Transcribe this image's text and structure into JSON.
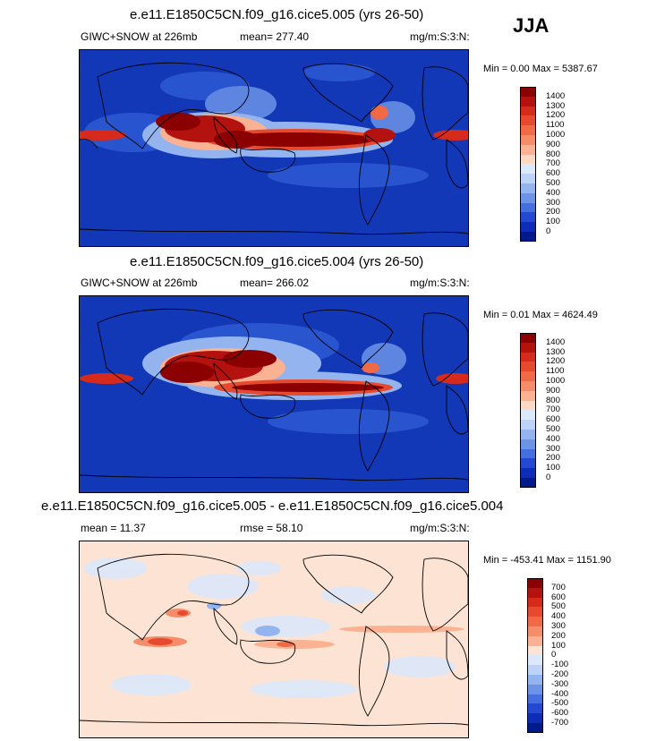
{
  "season": "JJA",
  "units": "mg/m:S:3:N:",
  "panels": [
    {
      "title": "e.e11.E1850C5CN.f09_g16.cice5.005 (yrs 26-50)",
      "variable": "GIWC+SNOW at 226mb",
      "mean": "mean= 277.40",
      "minmax": "Min =   0.00 Max = 5387.67",
      "levels": [
        "1400",
        "1300",
        "1200",
        "1100",
        "1000",
        "900",
        "800",
        "700",
        "600",
        "500",
        "400",
        "300",
        "200",
        "100",
        "0"
      ],
      "colors": [
        "#8b0000",
        "#b3120e",
        "#d62a1c",
        "#e64a2e",
        "#f06a48",
        "#f58d6b",
        "#fab293",
        "#fdd8c3",
        "#dce8fb",
        "#bcd2f7",
        "#94b4ef",
        "#6c93e6",
        "#456fde",
        "#2448d2",
        "#0f2cb8",
        "#001a8c"
      ]
    },
    {
      "title": "e.e11.E1850C5CN.f09_g16.cice5.004 (yrs 26-50)",
      "variable": "GIWC+SNOW at 226mb",
      "mean": "mean= 266.02",
      "minmax": "Min =   0.01 Max = 4624.49",
      "levels": [
        "1400",
        "1300",
        "1200",
        "1100",
        "1000",
        "900",
        "800",
        "700",
        "600",
        "500",
        "400",
        "300",
        "200",
        "100",
        "0"
      ],
      "colors": [
        "#8b0000",
        "#b3120e",
        "#d62a1c",
        "#e64a2e",
        "#f06a48",
        "#f58d6b",
        "#fab293",
        "#fdd8c3",
        "#dce8fb",
        "#bcd2f7",
        "#94b4ef",
        "#6c93e6",
        "#456fde",
        "#2448d2",
        "#0f2cb8",
        "#001a8c"
      ]
    },
    {
      "title": "e.e11.E1850C5CN.f09_g16.cice5.005 - e.e11.E1850C5CN.f09_g16.cice5.004",
      "mean": "mean =  11.37",
      "rmse": "rmse =  58.10",
      "minmax": "Min = -453.41 Max = 1151.90",
      "levels": [
        "700",
        "600",
        "500",
        "400",
        "300",
        "200",
        "100",
        "0",
        "-100",
        "-200",
        "-300",
        "-400",
        "-500",
        "-600",
        "-700"
      ],
      "colors": [
        "#8b0000",
        "#b3120e",
        "#d62a1c",
        "#e64a2e",
        "#f06a48",
        "#f58d6b",
        "#fab293",
        "#fde3d3",
        "#dce8fb",
        "#bcd2f7",
        "#94b4ef",
        "#6c93e6",
        "#456fde",
        "#2448d2",
        "#0f2cb8",
        "#001a8c"
      ]
    }
  ]
}
